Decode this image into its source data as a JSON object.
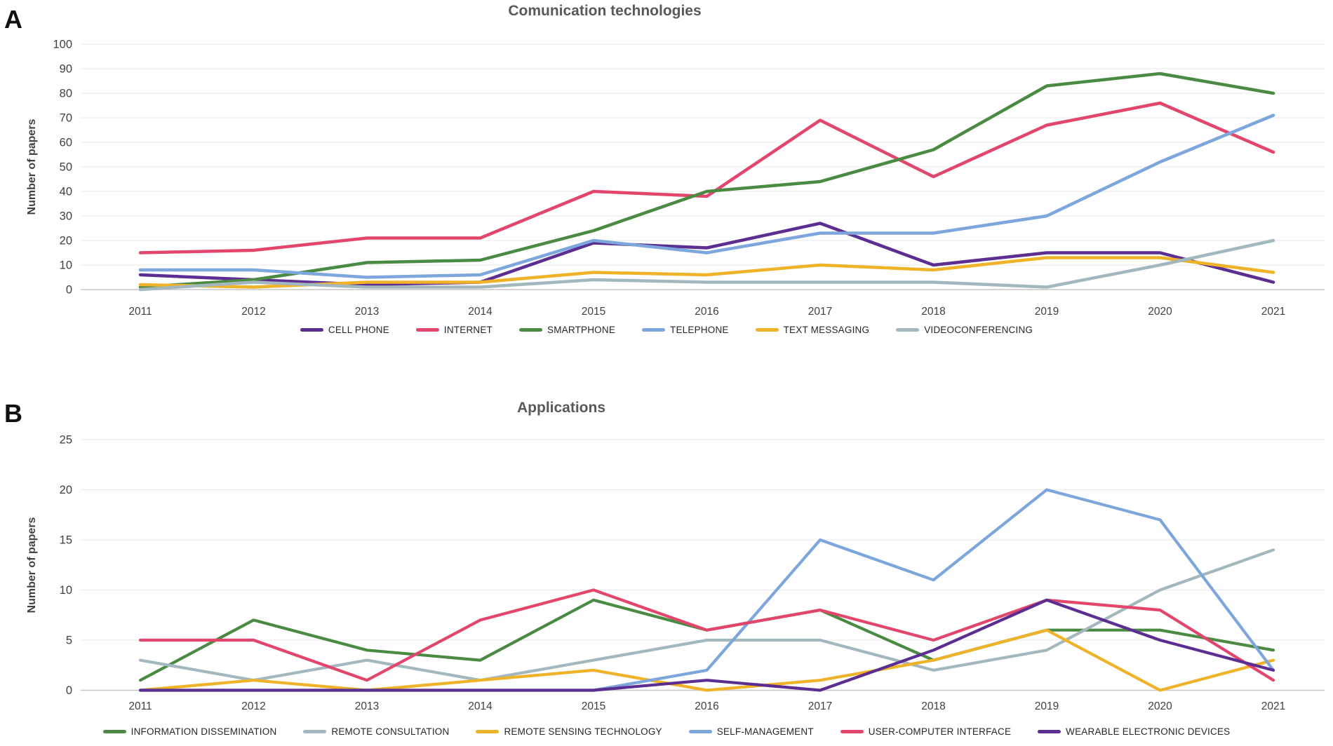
{
  "figure": {
    "panel_a_label": "A",
    "panel_b_label": "B"
  },
  "chart_data": [
    {
      "type": "line",
      "panel": "A",
      "title": "Comunication technologies",
      "ylabel": "Number of papers",
      "xlabel": "",
      "categories": [
        2011,
        2012,
        2013,
        2014,
        2015,
        2016,
        2017,
        2018,
        2019,
        2020,
        2021
      ],
      "ylim": [
        0,
        100
      ],
      "yticks": [
        0,
        10,
        20,
        30,
        40,
        50,
        60,
        70,
        80,
        90,
        100
      ],
      "grid": true,
      "legend_position": "bottom",
      "series": [
        {
          "name": "CELL PHONE",
          "color": "#5C2E91",
          "values": [
            6,
            4,
            2,
            3,
            19,
            17,
            27,
            10,
            15,
            15,
            3
          ]
        },
        {
          "name": "INTERNET",
          "color": "#E2466C",
          "values": [
            15,
            16,
            21,
            21,
            40,
            38,
            69,
            46,
            67,
            76,
            56
          ]
        },
        {
          "name": "SMARTPHONE",
          "color": "#4A8A42",
          "values": [
            1,
            4,
            11,
            12,
            24,
            40,
            44,
            57,
            83,
            88,
            80
          ]
        },
        {
          "name": "TELEPHONE",
          "color": "#7CA6DC",
          "values": [
            8,
            8,
            5,
            6,
            20,
            15,
            23,
            23,
            30,
            52,
            71
          ]
        },
        {
          "name": "TEXT MESSAGING",
          "color": "#EFB32A",
          "values": [
            2,
            1,
            3,
            3,
            7,
            6,
            10,
            8,
            13,
            13,
            7
          ]
        },
        {
          "name": "VIDEOCONFERENCING",
          "color": "#A3B8BE",
          "values": [
            0,
            3,
            1,
            1,
            4,
            3,
            3,
            3,
            1,
            10,
            20
          ]
        }
      ]
    },
    {
      "type": "line",
      "panel": "B",
      "title": "Applications",
      "ylabel": "Number of papers",
      "xlabel": "",
      "categories": [
        2011,
        2012,
        2013,
        2014,
        2015,
        2016,
        2017,
        2018,
        2019,
        2020,
        2021
      ],
      "ylim": [
        0,
        25
      ],
      "yticks": [
        0,
        5,
        10,
        15,
        20,
        25
      ],
      "grid": true,
      "legend_position": "bottom",
      "series": [
        {
          "name": "INFORMATION DISSEMINATION",
          "color": "#4A8A42",
          "values": [
            1,
            7,
            4,
            3,
            9,
            6,
            8,
            3,
            6,
            6,
            4
          ]
        },
        {
          "name": "REMOTE CONSULTATION",
          "color": "#A3B8BE",
          "values": [
            3,
            1,
            3,
            1,
            3,
            5,
            5,
            2,
            4,
            10,
            14
          ]
        },
        {
          "name": "REMOTE SENSING TECHNOLOGY",
          "color": "#EFB32A",
          "values": [
            0,
            1,
            0,
            1,
            2,
            0,
            1,
            3,
            6,
            0,
            3
          ]
        },
        {
          "name": "SELF-MANAGEMENT",
          "color": "#7CA6DC",
          "values": [
            0,
            0,
            0,
            0,
            0,
            2,
            15,
            11,
            20,
            17,
            2
          ]
        },
        {
          "name": "USER-COMPUTER INTERFACE",
          "color": "#E2466C",
          "values": [
            5,
            5,
            1,
            7,
            10,
            6,
            8,
            5,
            9,
            8,
            1
          ]
        },
        {
          "name": "WEARABLE ELECTRONIC DEVICES",
          "color": "#5C2E91",
          "values": [
            0,
            0,
            0,
            0,
            0,
            1,
            0,
            4,
            9,
            5,
            2
          ]
        }
      ]
    }
  ]
}
